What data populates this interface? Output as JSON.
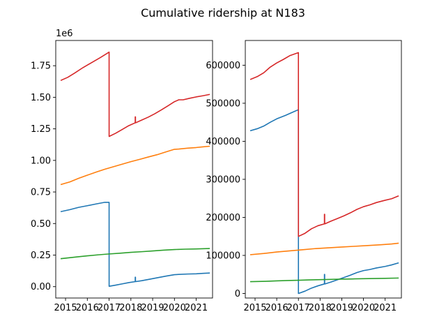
{
  "figure": {
    "title": "Cumulative ridership at N183"
  },
  "chart_data": [
    {
      "type": "line",
      "title": "",
      "xlabel": "",
      "ylabel": "",
      "x_type": "year",
      "xlim": [
        2014.55,
        2021.75
      ],
      "xticks": [
        2015,
        2016,
        2017,
        2018,
        2019,
        2020,
        2021
      ],
      "xtick_labels": [
        "2015",
        "2016",
        "2017",
        "2018",
        "2019",
        "2020",
        "2021"
      ],
      "ylim": [
        -0.09,
        1.95
      ],
      "yticks": [
        0.0,
        0.25,
        0.5,
        0.75,
        1.0,
        1.25,
        1.5,
        1.75
      ],
      "ytick_labels": [
        "0.00",
        "0.25",
        "0.50",
        "0.75",
        "1.00",
        "1.25",
        "1.50",
        "1.75"
      ],
      "y_multiplier": "1e6",
      "grid": false,
      "legend": "none",
      "series": [
        {
          "color": "#1f77b4",
          "x": [
            2014.8,
            2015.2,
            2015.6,
            2016.0,
            2016.4,
            2016.8,
            2017.0,
            2017.001,
            2017.3,
            2017.6,
            2017.9,
            2018.2,
            2018.2,
            2018.21,
            2018.21,
            2018.22,
            2018.5,
            2018.8,
            2019.2,
            2019.6,
            2020.0,
            2020.2,
            2020.6,
            2021.0,
            2021.3,
            2021.6
          ],
          "y": [
            0.595,
            0.61,
            0.628,
            0.641,
            0.655,
            0.668,
            0.668,
            0.003,
            0.012,
            0.022,
            0.032,
            0.04,
            0.075,
            0.075,
            0.04,
            0.04,
            0.047,
            0.057,
            0.07,
            0.083,
            0.095,
            0.097,
            0.1,
            0.102,
            0.105,
            0.108
          ]
        },
        {
          "color": "#ff7f0e",
          "x": [
            2014.8,
            2015.2,
            2015.6,
            2016.0,
            2016.4,
            2016.8,
            2017.2,
            2017.6,
            2018.0,
            2018.4,
            2018.8,
            2019.2,
            2019.6,
            2020.0,
            2020.2,
            2020.6,
            2021.0,
            2021.3,
            2021.6
          ],
          "y": [
            0.81,
            0.83,
            0.858,
            0.883,
            0.907,
            0.93,
            0.95,
            0.97,
            0.99,
            1.008,
            1.027,
            1.045,
            1.067,
            1.088,
            1.09,
            1.097,
            1.102,
            1.107,
            1.112
          ]
        },
        {
          "color": "#2ca02c",
          "x": [
            2014.8,
            2015.5,
            2016.0,
            2016.5,
            2017.0,
            2017.5,
            2018.0,
            2018.5,
            2019.0,
            2019.5,
            2020.0,
            2020.5,
            2021.0,
            2021.6
          ],
          "y": [
            0.222,
            0.235,
            0.244,
            0.252,
            0.259,
            0.265,
            0.272,
            0.277,
            0.283,
            0.289,
            0.294,
            0.297,
            0.299,
            0.302
          ]
        },
        {
          "color": "#d62728",
          "x": [
            2014.8,
            2015.1,
            2015.4,
            2015.8,
            2016.2,
            2016.6,
            2017.0,
            2017.001,
            2017.3,
            2017.6,
            2017.9,
            2018.2,
            2018.2,
            2018.21,
            2018.21,
            2018.22,
            2018.5,
            2018.8,
            2019.1,
            2019.4,
            2019.7,
            2020.0,
            2020.2,
            2020.4,
            2020.7,
            2021.0,
            2021.3,
            2021.6
          ],
          "y": [
            1.635,
            1.658,
            1.69,
            1.735,
            1.775,
            1.815,
            1.858,
            1.19,
            1.215,
            1.245,
            1.275,
            1.298,
            1.345,
            1.345,
            1.298,
            1.298,
            1.32,
            1.343,
            1.37,
            1.4,
            1.432,
            1.465,
            1.48,
            1.48,
            1.492,
            1.503,
            1.512,
            1.522
          ]
        }
      ]
    },
    {
      "type": "line",
      "title": "",
      "xlabel": "",
      "ylabel": "",
      "x_type": "year",
      "xlim": [
        2014.55,
        2021.75
      ],
      "xticks": [
        2015,
        2016,
        2017,
        2018,
        2019,
        2020,
        2021
      ],
      "xtick_labels": [
        "2015",
        "2016",
        "2017",
        "2018",
        "2019",
        "2020",
        "2021"
      ],
      "ylim": [
        -12000,
        665000
      ],
      "yticks": [
        0,
        100000,
        200000,
        300000,
        400000,
        500000,
        600000
      ],
      "ytick_labels": [
        "0",
        "100000",
        "200000",
        "300000",
        "400000",
        "500000",
        "600000"
      ],
      "grid": false,
      "legend": "none",
      "series": [
        {
          "color": "#1f77b4",
          "x": [
            2014.8,
            2015.1,
            2015.4,
            2015.7,
            2016.0,
            2016.4,
            2016.8,
            2017.0,
            2017.001,
            2017.3,
            2017.6,
            2017.9,
            2018.2,
            2018.2,
            2018.21,
            2018.21,
            2018.22,
            2018.5,
            2018.8,
            2019.1,
            2019.4,
            2019.7,
            2020.0,
            2020.3,
            2020.6,
            2021.0,
            2021.3,
            2021.6
          ],
          "y": [
            428000,
            433000,
            440000,
            450000,
            459000,
            468000,
            478000,
            483000,
            0,
            6000,
            14000,
            20000,
            25000,
            50000,
            50000,
            25000,
            25000,
            30000,
            36000,
            42000,
            48000,
            55000,
            60000,
            63000,
            67000,
            71000,
            75000,
            80000
          ]
        },
        {
          "color": "#ff7f0e",
          "x": [
            2014.8,
            2015.4,
            2016.0,
            2016.6,
            2017.2,
            2017.8,
            2018.4,
            2019.0,
            2019.6,
            2020.2,
            2020.8,
            2021.3,
            2021.6
          ],
          "y": [
            102000,
            105000,
            109000,
            112000,
            115000,
            118000,
            120000,
            122000,
            124000,
            126000,
            128000,
            130000,
            132000
          ]
        },
        {
          "color": "#2ca02c",
          "x": [
            2014.8,
            2015.5,
            2016.0,
            2016.5,
            2017.0,
            2017.5,
            2018.0,
            2018.5,
            2019.0,
            2019.5,
            2020.0,
            2020.5,
            2021.0,
            2021.6
          ],
          "y": [
            31000,
            32000,
            33000,
            34000,
            34700,
            35500,
            36200,
            37000,
            37600,
            38200,
            38800,
            39300,
            39800,
            40500
          ]
        },
        {
          "color": "#d62728",
          "x": [
            2014.8,
            2015.1,
            2015.4,
            2015.7,
            2016.0,
            2016.3,
            2016.6,
            2016.9,
            2017.0,
            2017.001,
            2017.3,
            2017.6,
            2017.9,
            2018.2,
            2018.2,
            2018.21,
            2018.21,
            2018.22,
            2018.5,
            2018.8,
            2019.1,
            2019.4,
            2019.7,
            2020.0,
            2020.3,
            2020.6,
            2021.0,
            2021.3,
            2021.6
          ],
          "y": [
            563000,
            570000,
            580000,
            595000,
            606000,
            615000,
            625000,
            631000,
            633000,
            150000,
            158000,
            170000,
            178000,
            183000,
            208000,
            208000,
            183000,
            183000,
            190000,
            197000,
            204000,
            212000,
            221000,
            228000,
            233000,
            239000,
            245000,
            249000,
            256000
          ]
        }
      ]
    }
  ]
}
